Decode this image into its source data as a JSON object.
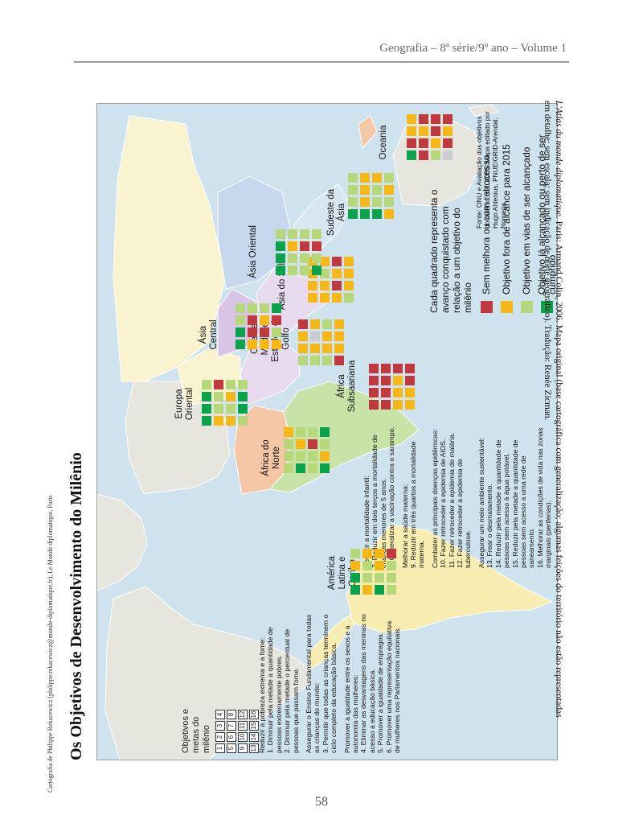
{
  "header": "Geografia – 8ª série/9º ano – Volume 1",
  "page_number": "58",
  "side_credit": "Cartografia de Philippe Rekacewicz (philippe.rekacewicz@monde-diplomatique.fr), Le Monde diplomatique, Paris",
  "source_credit": {
    "italic": "L'Atlas du monde diplomatique.",
    "rest": " Paris: Armand Colin, 2006. Mapa original (base cartográfica com generalização; algumas feições do território não estão representadas em detalhe; sem escala; sem indicação de norte geográfico). Tradução: Renée Zicman."
  },
  "map": {
    "title": "Os Objetivos de Desenvolvimento do Milênio",
    "objectives_label": "Objetivos e metas do milênio",
    "objective_numbers": [
      "1",
      "2",
      "3",
      "4",
      "5",
      "6",
      "7",
      "8",
      "9",
      "10",
      "11",
      "12",
      "13",
      "14",
      "15",
      "16"
    ],
    "goals_col1": [
      "Reduzir a pobreza extrema e a fome:",
      "1. Diminuir pela metade a quantidade de pessoas extremamente pobres.",
      "2. Diminuir pela metade o percentual de pessoas que passam fome.",
      "Assegurar o Ensino Fundamental para todas as crianças do mundo:",
      "3. Permitir que todas as crianças terminem o ciclo completo da educação básica.",
      "Promover a igualdade entre os sexos e a autonomia das mulheres:",
      "4. Eliminar as desvantagens das meninas no acesso a educação básica.",
      "5. Promover a igualdade de empregos.",
      "6. Promover uma representação equitativa de mulheres nos Parlamentos nacionais."
    ],
    "goals_col2": [
      "Reduzir a mortalidade infantil:",
      "7. Reduzir em dois terços a mortalidade de crianças menores de 5 anos.",
      "8. Generalizar a vacinação contra o sarampo.",
      "Melhorar a saúde materna:",
      "9. Reduzir em três quartos a mortalidade materna.",
      "Combater as principais doenças epidêmicas:",
      "10. Fazer retroceder a epidemia de AIDS.",
      "11. Fazer retroceder a epidemia de malária.",
      "12. Fazer retroceder a epidemia de tuberculose.",
      "Assegurar um meio ambiente sustentável:",
      "13. Frear o desmatamento.",
      "14. Reduzir pela metade a quantidade de pessoas sem acesso à água potável.",
      "15. Reduzir pela metade a quantidade de pessoas sem acesso a uma rede de saneamento.",
      "16. Melhorar as condições de vida nas zonas marginais (periferias)."
    ],
    "legend": {
      "intro": "Cada quadrado representa o avanço conquistado com relação a um objetivo do milênio",
      "items": [
        {
          "code": "R",
          "label": "Sem melhora ou com retrocesso",
          "color": "#c0393f"
        },
        {
          "code": "O",
          "label": "Objetivo fora de alcance para 2015",
          "color": "#f6b817"
        },
        {
          "code": "L",
          "label": "Objetivo em vias de ser alcançado",
          "color": "#b6d77a"
        },
        {
          "code": "G",
          "label": "Objetivo já alcançado ou perto de ser cumprido",
          "color": "#0aa24a"
        },
        {
          "code": "N",
          "label": "Dados insuficientes",
          "color": "#c9ccd0"
        }
      ]
    },
    "map_source": "Fonte: ONU e Avaliação dos objetivos do milênio, set. 2005. Mapa editado por Hugo Ahlenius, PNUE/GRID-Arendal, Noruega.",
    "regions": [
      {
        "name": "América Latina e Caribe",
        "matrix": [
          "GGOL",
          "OLLO",
          "GLOO",
          "LLLR"
        ]
      },
      {
        "name": "África do Norte",
        "matrix": [
          "LLLO",
          "GLOL",
          "LLRL",
          "GOLG"
        ]
      },
      {
        "name": "Europa Oriental",
        "matrix": [
          "GGGL",
          "OLLR",
          "OLOL",
          "LGGL"
        ]
      },
      {
        "name": "Oriente Médio e Estados do Golfo",
        "matrix": [
          "LOOR",
          "LONO",
          "LOOL",
          "ROOO"
        ]
      },
      {
        "name": "África Subsaariana",
        "matrix": [
          "RRRR",
          "RRRR",
          "OOOR",
          "OORR"
        ]
      },
      {
        "name": "Ásia Central",
        "matrix": [
          "GGLL",
          "ORRL",
          "OROL",
          "OLRG"
        ]
      },
      {
        "name": "Ásia do Sul",
        "matrix": [
          "OOOO",
          "OOLO",
          "OROR",
          "LOOO"
        ]
      },
      {
        "name": "Ásia Oriental",
        "matrix": [
          "GGGL",
          "LLOL",
          "LLRL",
          "GLRL"
        ]
      },
      {
        "name": "Sudeste da Ásia",
        "matrix": [
          "GLLL",
          "GOOO",
          "GLLO",
          "OLOL"
        ]
      },
      {
        "name": "Oceania",
        "matrix": [
          "GROO",
          "RROR",
          "LORR",
          "NROR"
        ]
      }
    ]
  }
}
